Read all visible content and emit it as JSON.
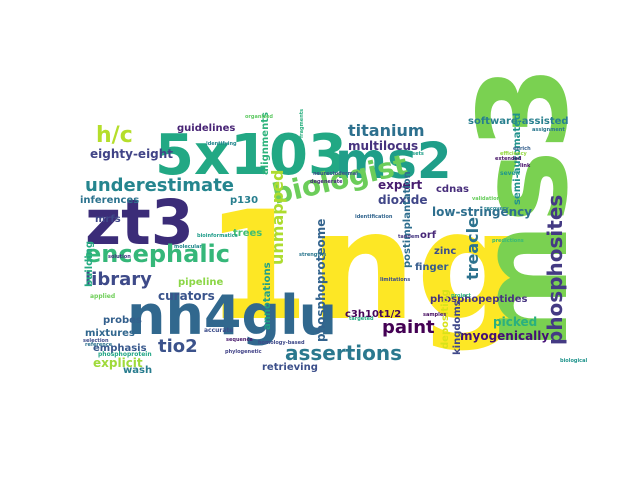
{
  "words": [
    {
      "text": "1ng",
      "color": "#fde725"
    },
    {
      "text": "ms3",
      "color": "#7ad151"
    },
    {
      "text": "5x103",
      "color": "#22a884"
    },
    {
      "text": "nh4glu",
      "color": "#31688e"
    },
    {
      "text": "zt3",
      "color": "#3b2c78"
    },
    {
      "text": "ms2",
      "color": "#1f9e89"
    },
    {
      "text": "encephalic",
      "color": "#35b779"
    },
    {
      "text": "biologist",
      "color": "#6ccd5a"
    },
    {
      "text": "underestimate",
      "color": "#25858e"
    },
    {
      "text": "assertions",
      "color": "#2a788e"
    },
    {
      "text": "phosphosites",
      "color": "#443a83"
    },
    {
      "text": "library",
      "color": "#3e4a89"
    },
    {
      "text": "tio2",
      "color": "#3b528b"
    },
    {
      "text": "h/c",
      "color": "#b5de2b"
    },
    {
      "text": "titanium",
      "color": "#2d708e"
    },
    {
      "text": "paint",
      "color": "#440154"
    },
    {
      "text": "unmapped",
      "color": "#addc30"
    },
    {
      "text": "treacle",
      "color": "#2c728e"
    },
    {
      "text": "eighty-eight",
      "color": "#414487"
    },
    {
      "text": "phosphoproteome",
      "color": "#33638d"
    },
    {
      "text": "low-stringency",
      "color": "#2e6f8e"
    },
    {
      "text": "dioxide",
      "color": "#404688"
    },
    {
      "text": "expert",
      "color": "#481d6f"
    },
    {
      "text": "curators",
      "color": "#3a548c"
    },
    {
      "text": "annotations",
      "color": "#1fa088"
    },
    {
      "text": "multilocus",
      "color": "#46327e"
    },
    {
      "text": "software-assisted",
      "color": "#277f8e"
    },
    {
      "text": "semi-automated",
      "color": "#20928c"
    },
    {
      "text": "picked",
      "color": "#2ab07f"
    },
    {
      "text": "phosphopeptides",
      "color": "#46337f"
    },
    {
      "text": "myogenically",
      "color": "#440f76"
    },
    {
      "text": "kingdoms",
      "color": "#3f4889"
    },
    {
      "text": "cdnas",
      "color": "#472d7b"
    },
    {
      "text": "finger",
      "color": "#365c8d"
    },
    {
      "text": "c3h10t1/2",
      "color": "#450559"
    },
    {
      "text": "explicit",
      "color": "#9fda3a"
    },
    {
      "text": "emphasis",
      "color": "#38588c"
    },
    {
      "text": "mixtures",
      "color": "#31678e"
    },
    {
      "text": "probes",
      "color": "#34608d"
    },
    {
      "text": "wash",
      "color": "#287c8e"
    },
    {
      "text": "inferences",
      "color": "#2c738e"
    },
    {
      "text": "trees",
      "color": "#42be71"
    },
    {
      "text": "pipeline",
      "color": "#8bd646"
    },
    {
      "text": "guidelines",
      "color": "#482475"
    },
    {
      "text": "alignments",
      "color": "#2eb37c"
    },
    {
      "text": "retrieving",
      "color": "#3c4f8a"
    },
    {
      "text": "postimplantation",
      "color": "#2e6e8e"
    },
    {
      "text": "depositing",
      "color": "#d8e219"
    },
    {
      "text": "zinc",
      "color": "#3c4f8a"
    },
    {
      "text": "orf",
      "color": "#482878"
    },
    {
      "text": "mrfs",
      "color": "#3f4788"
    },
    {
      "text": "building",
      "color": "#25ab82"
    },
    {
      "text": "p130",
      "color": "#277e8e"
    },
    {
      "text": "seven",
      "color": "#1f988b"
    },
    {
      "text": "phosphoprotein",
      "color": "#21a685"
    },
    {
      "text": "organized",
      "color": "#5ec962"
    },
    {
      "text": "applied",
      "color": "#6ece58"
    },
    {
      "text": "selection",
      "color": "#3e4c8a"
    },
    {
      "text": "reference",
      "color": "#2c718e"
    },
    {
      "text": "sequence",
      "color": "#481a6c"
    },
    {
      "text": "phylogenetic",
      "color": "#414287"
    },
    {
      "text": "strengths",
      "color": "#2a768e"
    },
    {
      "text": "accurate",
      "color": "#3d4d8a"
    },
    {
      "text": "bioinformatics",
      "color": "#1e9c89"
    },
    {
      "text": "degenerate",
      "color": "#472c7a"
    },
    {
      "text": "neurectodermal",
      "color": "#3b518b"
    },
    {
      "text": "subsets",
      "color": "#1f9f88"
    },
    {
      "text": "solution",
      "color": "#463480"
    },
    {
      "text": "identifying",
      "color": "#24878e"
    },
    {
      "text": "identification",
      "color": "#32658e"
    },
    {
      "text": "validation",
      "color": "#67cc5c"
    },
    {
      "text": "recovery",
      "color": "#26828e"
    },
    {
      "text": "efficiency",
      "color": "#95d840"
    },
    {
      "text": "extended",
      "color": "#481668"
    },
    {
      "text": "assignment",
      "color": "#2a778e"
    },
    {
      "text": "predictions",
      "color": "#38b977"
    },
    {
      "text": "molecular",
      "color": "#23898e"
    },
    {
      "text": "homology-based",
      "color": "#3e4989"
    },
    {
      "text": "enrich",
      "color": "#355f8d"
    },
    {
      "text": "link",
      "color": "#440a68"
    },
    {
      "text": "fragments",
      "color": "#29af7f"
    },
    {
      "text": "tandem",
      "color": "#453781"
    },
    {
      "text": "project",
      "color": "#2fb47c"
    },
    {
      "text": "targeted",
      "color": "#23a983"
    },
    {
      "text": "samples",
      "color": "#470e61"
    },
    {
      "text": "biological",
      "color": "#1f948c"
    },
    {
      "text": "limitations",
      "color": "#3d4e8a"
    }
  ]
}
